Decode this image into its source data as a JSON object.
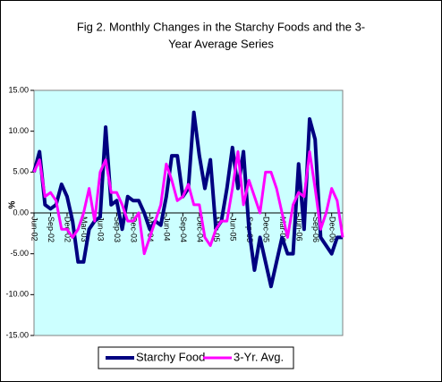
{
  "chart_data": {
    "type": "line",
    "title": [
      "Fig 2. Monthly Changes in the Starchy Foods and the 3-",
      "Year Average Series"
    ],
    "ylabel": "%",
    "categories": [
      "Jun-02",
      null,
      null,
      "Sep-02",
      null,
      null,
      "Dec-02",
      null,
      null,
      "Mar-03",
      null,
      null,
      "Jun-03",
      null,
      null,
      "Sep-03",
      null,
      null,
      "Dec-03",
      null,
      null,
      "Mar-04",
      null,
      null,
      "Jun-04",
      null,
      null,
      "Sep-04",
      null,
      null,
      "Dec-04",
      null,
      null,
      "Mar-05",
      null,
      null,
      "Jun-05",
      null,
      null,
      "Sep-05",
      null,
      null,
      "Dec-05",
      null,
      null,
      "Mar-06",
      null,
      null,
      "Jun-06",
      null,
      null,
      "Sep-06",
      null,
      null,
      "Dec-06",
      null,
      null
    ],
    "series": [
      {
        "name": "Starchy Food",
        "color": "#000080",
        "values": [
          5,
          7.5,
          1,
          0.5,
          1,
          3.5,
          2,
          -1,
          -6,
          -6,
          -2,
          -1,
          -0.5,
          10.5,
          1,
          1.5,
          -2,
          2,
          1.5,
          1.5,
          0,
          -2,
          -1,
          -1.5,
          2,
          7,
          7,
          2,
          3,
          12.3,
          7,
          3,
          6.5,
          -2,
          -1,
          3,
          8,
          3,
          7.5,
          -2,
          -7,
          -3,
          -6,
          -9,
          -6,
          -3,
          -5,
          -5,
          6,
          -2,
          11.5,
          9,
          -3,
          -4,
          -5,
          -3,
          -3
        ]
      },
      {
        "name": "3-Yr. Avg.",
        "color": "#ff00ff",
        "values": [
          5,
          6.5,
          2,
          2.5,
          1.5,
          -2,
          -2,
          -3,
          -2,
          0,
          3,
          -1,
          5,
          6.5,
          2.5,
          2.5,
          1,
          -1,
          -1,
          0,
          -5,
          -3,
          -1,
          1,
          6,
          4,
          1.5,
          2,
          3.5,
          1,
          1,
          -3,
          -4,
          -2,
          -1,
          -1,
          3,
          7.5,
          1,
          4,
          2,
          0,
          5,
          5,
          3,
          0,
          -3,
          1,
          2.5,
          2,
          7.5,
          3,
          -2,
          0,
          3,
          1.5,
          -3
        ]
      }
    ],
    "ylim": [
      -15,
      15
    ],
    "yticks": [
      {
        "value": -15,
        "label": "-15.00"
      },
      {
        "value": -10,
        "label": "-10.00"
      },
      {
        "value": -5,
        "label": "-5.00"
      },
      {
        "value": 0,
        "label": "0.00"
      },
      {
        "value": 5,
        "label": "5.00"
      },
      {
        "value": 10,
        "label": "10.00"
      },
      {
        "value": 15,
        "label": "15.00"
      }
    ],
    "plot_background": "#ccffff",
    "legend": "bottom"
  }
}
